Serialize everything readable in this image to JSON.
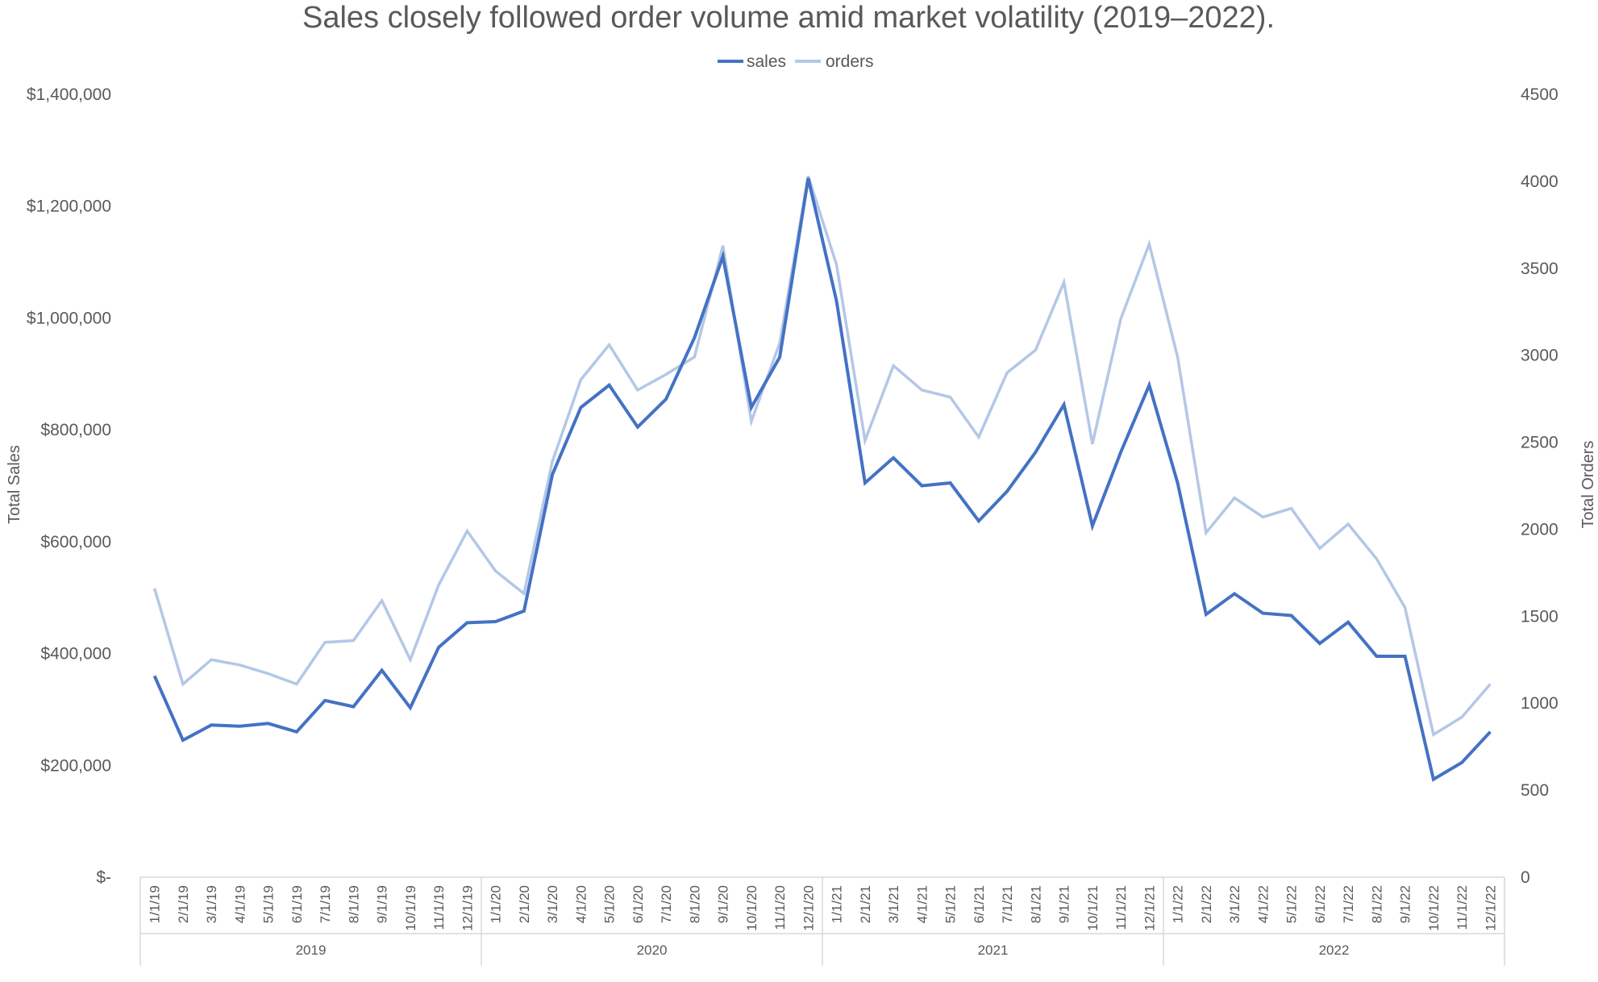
{
  "chart_data": {
    "type": "line",
    "title": "Sales closely followed order volume amid market volatility (2019–2022).",
    "ylabel_left": "Total Sales",
    "ylabel_right": "Total Orders",
    "y_left_ticks": [
      "$-",
      "$200,000",
      "$400,000",
      "$600,000",
      "$800,000",
      "$1,000,000",
      "$1,200,000",
      "$1,400,000"
    ],
    "y_left_range": [
      0,
      1400000
    ],
    "y_right_ticks": [
      "0",
      "500",
      "1000",
      "1500",
      "2000",
      "2500",
      "3000",
      "3500",
      "4000",
      "4500"
    ],
    "y_right_range": [
      0,
      4500
    ],
    "legend_position": "top-center",
    "grid": false,
    "categories": [
      "1/1/19",
      "2/1/19",
      "3/1/19",
      "4/1/19",
      "5/1/19",
      "6/1/19",
      "7/1/19",
      "8/1/19",
      "9/1/19",
      "10/1/19",
      "11/1/19",
      "12/1/19",
      "1/1/20",
      "2/1/20",
      "3/1/20",
      "4/1/20",
      "5/1/20",
      "6/1/20",
      "7/1/20",
      "8/1/20",
      "9/1/20",
      "10/1/20",
      "11/1/20",
      "12/1/20",
      "1/1/21",
      "2/1/21",
      "3/1/21",
      "4/1/21",
      "5/1/21",
      "6/1/21",
      "7/1/21",
      "8/1/21",
      "9/1/21",
      "10/1/21",
      "11/1/21",
      "12/1/21",
      "1/1/22",
      "2/1/22",
      "3/1/22",
      "4/1/22",
      "5/1/22",
      "6/1/22",
      "7/1/22",
      "8/1/22",
      "9/1/22",
      "10/1/22",
      "11/1/22",
      "12/1/22"
    ],
    "year_groups": [
      "2019",
      "2020",
      "2021",
      "2022"
    ],
    "series": [
      {
        "name": "sales",
        "axis": "left",
        "color": "#4472C4",
        "values": [
          360000,
          245000,
          272000,
          270000,
          275000,
          260000,
          316000,
          305000,
          370000,
          303000,
          411000,
          455000,
          457000,
          476000,
          720000,
          840000,
          880000,
          805000,
          855000,
          965000,
          1110000,
          840000,
          930000,
          1250000,
          1030000,
          705000,
          750000,
          700000,
          705000,
          637000,
          690000,
          760000,
          845000,
          628000,
          760000,
          880000,
          705000,
          470000,
          507000,
          472000,
          468000,
          418000,
          456000,
          395000,
          395000,
          175000,
          205000,
          260000
        ]
      },
      {
        "name": "orders",
        "axis": "right",
        "color": "#B4C7E7",
        "values": [
          1660,
          1110,
          1250,
          1220,
          1170,
          1110,
          1350,
          1360,
          1590,
          1250,
          1680,
          1990,
          1760,
          1630,
          2390,
          2860,
          3060,
          2800,
          2890,
          2990,
          3630,
          2620,
          3070,
          4030,
          3520,
          2510,
          2940,
          2800,
          2760,
          2530,
          2900,
          3030,
          3420,
          2490,
          3210,
          3640,
          2990,
          1980,
          2180,
          2070,
          2120,
          1890,
          2030,
          1830,
          1550,
          820,
          920,
          1110
        ]
      }
    ]
  }
}
